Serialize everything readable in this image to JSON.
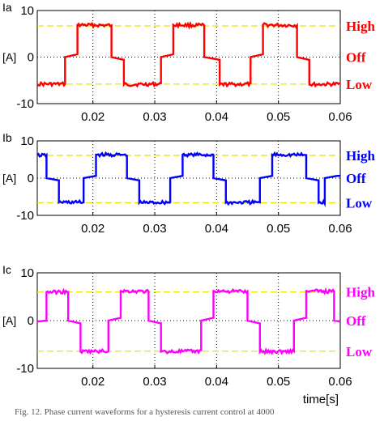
{
  "caption": "Fig. 12. Phase current waveforms for a hysteresis current control at 4000",
  "chart_data": [
    {
      "type": "line",
      "ylabel_top": "Ia",
      "ylabel_unit": "[A]",
      "y_ticks": [
        "10",
        "0",
        "-10"
      ],
      "x_ticks": [
        "0.02",
        "0.03",
        "0.04",
        "0.05",
        "0.06"
      ],
      "xlabel": "",
      "xlim": [
        0.011,
        0.06
      ],
      "ylim": [
        -10,
        10
      ],
      "grid": true,
      "color": "#ff0000",
      "levels": {
        "high": 6.7,
        "low": -5.8
      },
      "state_labels": [
        "High",
        "Off",
        "Low"
      ],
      "series": [
        {
          "points": [
            [
              0.011,
              -5.8
            ],
            [
              0.0155,
              -5.8
            ],
            [
              0.0155,
              0
            ],
            [
              0.0175,
              0.6
            ],
            [
              0.0175,
              6.9
            ],
            [
              0.023,
              6.8
            ],
            [
              0.023,
              0
            ],
            [
              0.025,
              -0.6
            ],
            [
              0.025,
              -5.9
            ],
            [
              0.031,
              -5.8
            ],
            [
              0.031,
              0
            ],
            [
              0.033,
              0.6
            ],
            [
              0.033,
              6.9
            ],
            [
              0.038,
              6.8
            ],
            [
              0.038,
              0
            ],
            [
              0.0405,
              -0.6
            ],
            [
              0.0405,
              -5.9
            ],
            [
              0.0455,
              -5.8
            ],
            [
              0.0455,
              0
            ],
            [
              0.0475,
              0.6
            ],
            [
              0.0475,
              6.9
            ],
            [
              0.053,
              6.8
            ],
            [
              0.053,
              0
            ],
            [
              0.055,
              -0.6
            ],
            [
              0.055,
              -5.9
            ],
            [
              0.06,
              -5.8
            ]
          ]
        }
      ]
    },
    {
      "type": "line",
      "ylabel_top": "Ib",
      "ylabel_unit": "[A]",
      "y_ticks": [
        "10",
        "0",
        "-10"
      ],
      "x_ticks": [
        "0.02",
        "0.03",
        "0.04",
        "0.05",
        "0.06"
      ],
      "xlabel": "",
      "xlim": [
        0.011,
        0.06
      ],
      "ylim": [
        -10,
        10
      ],
      "grid": true,
      "color": "#0000ff",
      "levels": {
        "high": 6.1,
        "low": -6.6
      },
      "state_labels": [
        "High",
        "Off",
        "Low"
      ],
      "series": [
        {
          "points": [
            [
              0.011,
              6.1
            ],
            [
              0.0125,
              6.1
            ],
            [
              0.0125,
              0
            ],
            [
              0.0145,
              -0.6
            ],
            [
              0.0145,
              -6.5
            ],
            [
              0.0185,
              -6.5
            ],
            [
              0.0185,
              0
            ],
            [
              0.0205,
              0.6
            ],
            [
              0.0205,
              6.3
            ],
            [
              0.0255,
              6.2
            ],
            [
              0.0255,
              0
            ],
            [
              0.0275,
              -0.6
            ],
            [
              0.0275,
              -6.6
            ],
            [
              0.0325,
              -6.5
            ],
            [
              0.0325,
              0
            ],
            [
              0.0345,
              0.6
            ],
            [
              0.0345,
              6.3
            ],
            [
              0.0395,
              6.2
            ],
            [
              0.0395,
              0
            ],
            [
              0.0415,
              -0.6
            ],
            [
              0.0415,
              -6.6
            ],
            [
              0.047,
              -6.5
            ],
            [
              0.047,
              0
            ],
            [
              0.049,
              0.6
            ],
            [
              0.049,
              6.3
            ],
            [
              0.0545,
              6.2
            ],
            [
              0.0545,
              0
            ],
            [
              0.0565,
              -0.6
            ],
            [
              0.0565,
              -6.6
            ],
            [
              0.0575,
              -6.5
            ],
            [
              0.0575,
              0
            ],
            [
              0.0595,
              0.6
            ],
            [
              0.06,
              0.6
            ]
          ]
        }
      ]
    },
    {
      "type": "line",
      "ylabel_top": "Ic",
      "ylabel_unit": "[A]",
      "y_ticks": [
        "10",
        "0",
        "-10"
      ],
      "x_ticks": [
        "0.02",
        "0.03",
        "0.04",
        "0.05",
        "0.06"
      ],
      "xlabel": "time[s]",
      "xlim": [
        0.011,
        0.06
      ],
      "ylim": [
        -10,
        10
      ],
      "grid": true,
      "color": "#ff00ff",
      "levels": {
        "high": 6.0,
        "low": -6.4
      },
      "state_labels": [
        "High",
        "Off",
        "Low"
      ],
      "series": [
        {
          "points": [
            [
              0.011,
              -0.2
            ],
            [
              0.0125,
              0
            ],
            [
              0.0125,
              6.0
            ],
            [
              0.016,
              6.0
            ],
            [
              0.016,
              0
            ],
            [
              0.018,
              -0.6
            ],
            [
              0.018,
              -6.5
            ],
            [
              0.0225,
              -6.4
            ],
            [
              0.0225,
              0
            ],
            [
              0.0245,
              0.6
            ],
            [
              0.0245,
              6.2
            ],
            [
              0.029,
              6.1
            ],
            [
              0.029,
              0
            ],
            [
              0.031,
              -0.6
            ],
            [
              0.031,
              -6.5
            ],
            [
              0.0375,
              -6.4
            ],
            [
              0.0375,
              0
            ],
            [
              0.0395,
              0.6
            ],
            [
              0.0395,
              6.2
            ],
            [
              0.045,
              6.1
            ],
            [
              0.045,
              0
            ],
            [
              0.047,
              -0.6
            ],
            [
              0.047,
              -6.5
            ],
            [
              0.0525,
              -6.4
            ],
            [
              0.0525,
              0
            ],
            [
              0.0545,
              0.6
            ],
            [
              0.0545,
              6.2
            ],
            [
              0.059,
              6.1
            ],
            [
              0.059,
              0
            ],
            [
              0.06,
              -0.2
            ]
          ]
        }
      ]
    }
  ]
}
